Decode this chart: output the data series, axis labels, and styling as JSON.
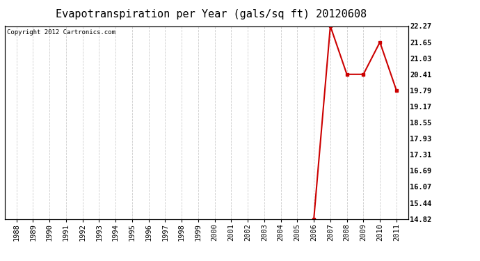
{
  "title": "Evapotranspiration per Year (gals/sq ft) 20120608",
  "copyright": "Copyright 2012 Cartronics.com",
  "x_years": [
    1988,
    1989,
    1990,
    1991,
    1992,
    1993,
    1994,
    1995,
    1996,
    1997,
    1998,
    1999,
    2000,
    2001,
    2002,
    2003,
    2004,
    2005,
    2006,
    2007,
    2008,
    2009,
    2010,
    2011
  ],
  "y_values": [
    null,
    null,
    null,
    null,
    null,
    null,
    null,
    null,
    null,
    null,
    null,
    null,
    null,
    null,
    null,
    null,
    null,
    null,
    14.82,
    22.27,
    20.41,
    20.41,
    21.65,
    19.79
  ],
  "yticks": [
    14.82,
    15.44,
    16.07,
    16.69,
    17.31,
    17.93,
    18.55,
    19.17,
    19.79,
    20.41,
    21.03,
    21.65,
    22.27
  ],
  "ymin": 14.82,
  "ymax": 22.27,
  "line_color": "#cc0000",
  "marker": "s",
  "marker_size": 3,
  "background_color": "#ffffff",
  "plot_bg_color": "#ffffff",
  "grid_color": "#cccccc",
  "title_fontsize": 11,
  "tick_fontsize": 7.5,
  "copyright_fontsize": 6.5
}
